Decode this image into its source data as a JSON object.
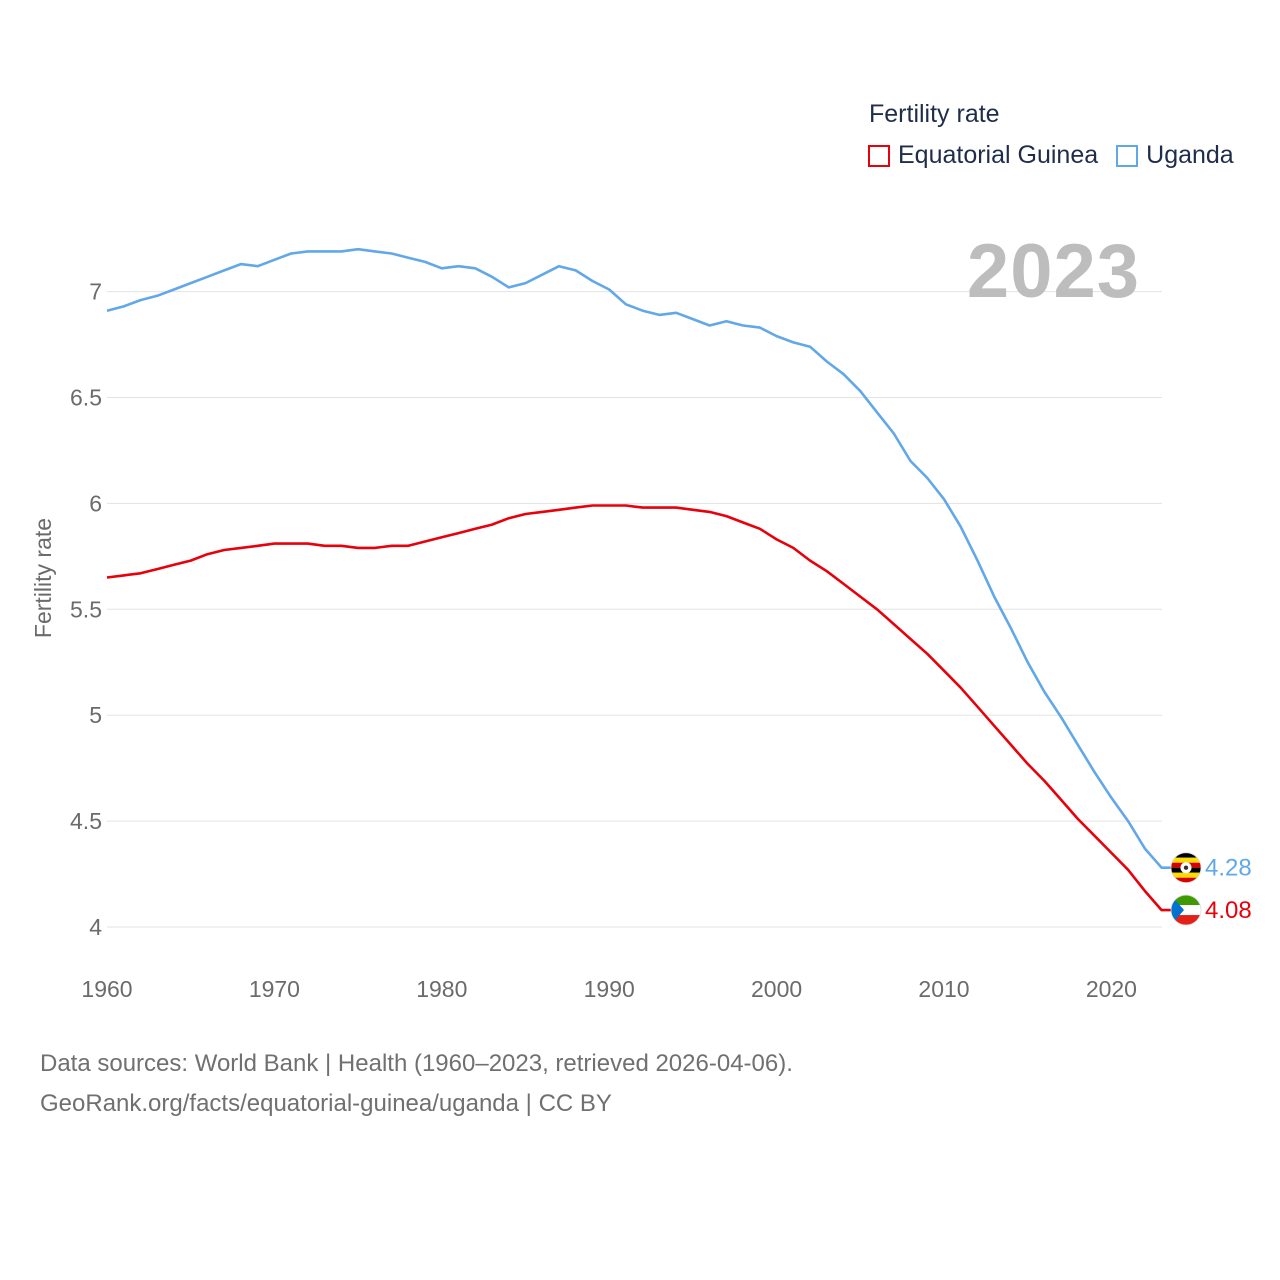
{
  "legend": {
    "title": "Fertility rate",
    "items": [
      {
        "label": "Equatorial Guinea",
        "color": "#e8000b"
      },
      {
        "label": "Uganda",
        "color": "#62a8e8"
      }
    ]
  },
  "year_label": "2023",
  "footer": {
    "line1": "Data sources: World Bank | Health (1960–2023, retrieved 2026-04-06).",
    "line2": "GeoRank.org/facts/equatorial-guinea/uganda | CC BY"
  },
  "chart_data": {
    "type": "line",
    "title": "Fertility rate",
    "xlabel": "",
    "ylabel": "Fertility rate",
    "xlim": [
      1960,
      2023
    ],
    "ylim": [
      3.95,
      7.35
    ],
    "yticks": [
      4,
      4.5,
      5,
      5.5,
      6,
      6.5,
      7
    ],
    "ytick_labels": [
      "4",
      "4.5",
      "5",
      "5.5",
      "6",
      "6.5",
      "7"
    ],
    "xticks": [
      1960,
      1970,
      1980,
      1990,
      2000,
      2010,
      2020
    ],
    "xtick_labels": [
      "1960",
      "1970",
      "1980",
      "1990",
      "2000",
      "2010",
      "2020"
    ],
    "grid": true,
    "legend_position": "top-right",
    "x": [
      1960,
      1961,
      1962,
      1963,
      1964,
      1965,
      1966,
      1967,
      1968,
      1969,
      1970,
      1971,
      1972,
      1973,
      1974,
      1975,
      1976,
      1977,
      1978,
      1979,
      1980,
      1981,
      1982,
      1983,
      1984,
      1985,
      1986,
      1987,
      1988,
      1989,
      1990,
      1991,
      1992,
      1993,
      1994,
      1995,
      1996,
      1997,
      1998,
      1999,
      2000,
      2001,
      2002,
      2003,
      2004,
      2005,
      2006,
      2007,
      2008,
      2009,
      2010,
      2011,
      2012,
      2013,
      2014,
      2015,
      2016,
      2017,
      2018,
      2019,
      2020,
      2021,
      2022,
      2023
    ],
    "series": [
      {
        "name": "Equatorial Guinea",
        "color": "#e8000b",
        "end_label": "4.08",
        "values": [
          5.65,
          5.66,
          5.67,
          5.69,
          5.71,
          5.73,
          5.76,
          5.78,
          5.79,
          5.8,
          5.81,
          5.81,
          5.81,
          5.8,
          5.8,
          5.79,
          5.79,
          5.8,
          5.8,
          5.82,
          5.84,
          5.86,
          5.88,
          5.9,
          5.93,
          5.95,
          5.96,
          5.97,
          5.98,
          5.99,
          5.99,
          5.99,
          5.98,
          5.98,
          5.98,
          5.97,
          5.96,
          5.94,
          5.91,
          5.88,
          5.83,
          5.79,
          5.73,
          5.68,
          5.62,
          5.56,
          5.5,
          5.43,
          5.36,
          5.29,
          5.21,
          5.13,
          5.04,
          4.95,
          4.86,
          4.77,
          4.69,
          4.6,
          4.51,
          4.43,
          4.35,
          4.27,
          4.17,
          4.08
        ]
      },
      {
        "name": "Uganda",
        "color": "#62a8e8",
        "end_label": "4.28",
        "values": [
          6.91,
          6.93,
          6.96,
          6.98,
          7.01,
          7.04,
          7.07,
          7.1,
          7.13,
          7.12,
          7.15,
          7.18,
          7.19,
          7.19,
          7.19,
          7.2,
          7.19,
          7.18,
          7.16,
          7.14,
          7.11,
          7.12,
          7.11,
          7.07,
          7.02,
          7.04,
          7.08,
          7.12,
          7.1,
          7.05,
          7.01,
          6.94,
          6.91,
          6.89,
          6.9,
          6.87,
          6.84,
          6.86,
          6.84,
          6.83,
          6.79,
          6.76,
          6.74,
          6.67,
          6.61,
          6.53,
          6.43,
          6.33,
          6.2,
          6.12,
          6.02,
          5.89,
          5.73,
          5.56,
          5.41,
          5.25,
          5.11,
          4.99,
          4.86,
          4.73,
          4.61,
          4.5,
          4.37,
          4.28
        ]
      }
    ]
  }
}
